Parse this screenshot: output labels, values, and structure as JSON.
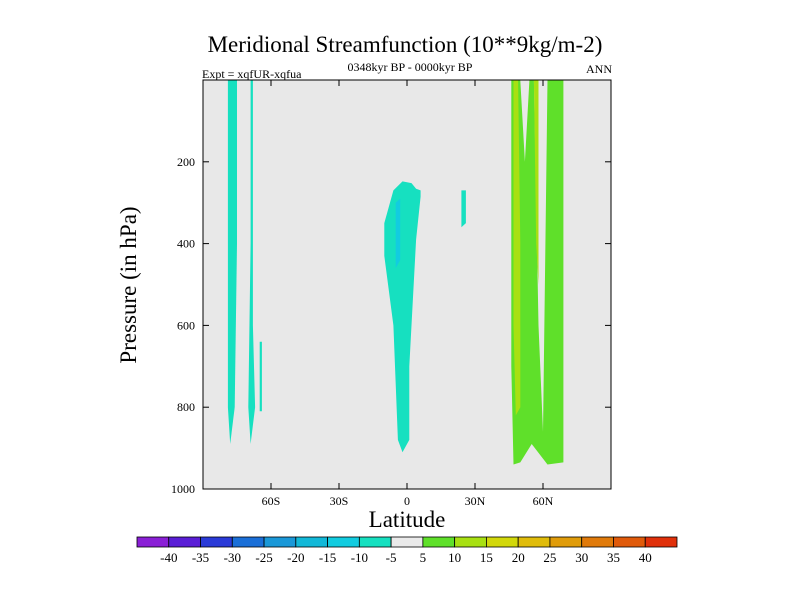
{
  "chart_data": {
    "type": "contour",
    "title": "Meridional Streamfunction (10**9kg/m-2)",
    "left_label": "Expt = xqfUR-xqfua",
    "center_label": "0348kyr BP - 0000kyr BP",
    "right_label": "ANN",
    "xlabel": "Latitude",
    "ylabel": "Pressure (in hPa)",
    "x_ticks": [
      "60S",
      "30S",
      "0",
      "30N",
      "60N"
    ],
    "x_tick_values": [
      -60,
      -30,
      0,
      30,
      60
    ],
    "xlim": [
      -90,
      90
    ],
    "y_ticks": [
      "200",
      "400",
      "600",
      "800",
      "1000"
    ],
    "y_tick_values": [
      200,
      400,
      600,
      800,
      1000
    ],
    "ylim": [
      0,
      1000
    ],
    "y_reversed": true,
    "colorbar": {
      "labels": [
        "-40",
        "-35",
        "-30",
        "-25",
        "-20",
        "-15",
        "-10",
        "-5",
        "5",
        "10",
        "15",
        "20",
        "25",
        "30",
        "35",
        "40"
      ],
      "colors": [
        "#8a1fd6",
        "#5a1ed6",
        "#2a3ad8",
        "#1a6fd8",
        "#1a98d8",
        "#12b8d8",
        "#12cce0",
        "#16e0c0",
        "#eaeaea",
        "#5fe02a",
        "#a8e012",
        "#d2d80a",
        "#e0bc0a",
        "#e09c0a",
        "#e07a0a",
        "#e05a0a",
        "#e0300a"
      ]
    },
    "regions": [
      {
        "name": "southern-ocean-band-west",
        "level": "-5",
        "color": "#16e0c0",
        "points": [
          [
            -79,
            1
          ],
          [
            -75,
            1
          ],
          [
            -75,
            400
          ],
          [
            -76,
            800
          ],
          [
            -78,
            890
          ],
          [
            -79,
            800
          ]
        ]
      },
      {
        "name": "southern-ocean-band-east",
        "level": "-5",
        "color": "#16e0c0",
        "points": [
          [
            -69,
            1
          ],
          [
            -68,
            1
          ],
          [
            -68,
            600
          ],
          [
            -67,
            800
          ],
          [
            -69,
            890
          ],
          [
            -70,
            800
          ],
          [
            -69,
            400
          ]
        ]
      },
      {
        "name": "southern-ocean-sliver",
        "level": "-5",
        "color": "#16e0c0",
        "points": [
          [
            -65,
            640
          ],
          [
            -64,
            640
          ],
          [
            -64,
            810
          ],
          [
            -65,
            810
          ]
        ]
      },
      {
        "name": "equatorial-cell",
        "level": "-5",
        "color": "#16e0c0",
        "points": [
          [
            -10,
            350
          ],
          [
            -6,
            270
          ],
          [
            -2,
            248
          ],
          [
            2,
            252
          ],
          [
            4,
            266
          ],
          [
            6,
            270
          ],
          [
            6,
            285
          ],
          [
            4,
            390
          ],
          [
            1,
            700
          ],
          [
            1,
            880
          ],
          [
            -2,
            910
          ],
          [
            -4,
            880
          ],
          [
            -6,
            600
          ],
          [
            -10,
            430
          ]
        ]
      },
      {
        "name": "equatorial-core",
        "level": "-10",
        "color": "#12cce0",
        "points": [
          [
            -5,
            300
          ],
          [
            -3,
            290
          ],
          [
            -3,
            440
          ],
          [
            -5,
            460
          ]
        ]
      },
      {
        "name": "north-subtropic-speck",
        "level": "-5",
        "color": "#16e0c0",
        "points": [
          [
            24,
            270
          ],
          [
            26,
            270
          ],
          [
            26,
            350
          ],
          [
            24,
            360
          ]
        ]
      },
      {
        "name": "north-cell-outer",
        "level": "5",
        "color": "#5fe02a",
        "points": [
          [
            46,
            1
          ],
          [
            50,
            1
          ],
          [
            52,
            200
          ],
          [
            54,
            1
          ],
          [
            56,
            1
          ],
          [
            58,
            600
          ],
          [
            60,
            860
          ],
          [
            62,
            1
          ],
          [
            69,
            1
          ],
          [
            69,
            935
          ],
          [
            62,
            940
          ],
          [
            55,
            890
          ],
          [
            50,
            935
          ],
          [
            47,
            940
          ],
          [
            46,
            700
          ]
        ]
      },
      {
        "name": "north-cell-inner",
        "level": "10",
        "color": "#a8e012",
        "points": [
          [
            47,
            1
          ],
          [
            49,
            1
          ],
          [
            50,
            400
          ],
          [
            50,
            800
          ],
          [
            48,
            820
          ],
          [
            47,
            600
          ]
        ]
      },
      {
        "name": "north-cell-inner-east",
        "level": "10",
        "color": "#a8e012",
        "points": [
          [
            56,
            1
          ],
          [
            58,
            1
          ],
          [
            58,
            500
          ],
          [
            57,
            400
          ]
        ]
      }
    ]
  }
}
